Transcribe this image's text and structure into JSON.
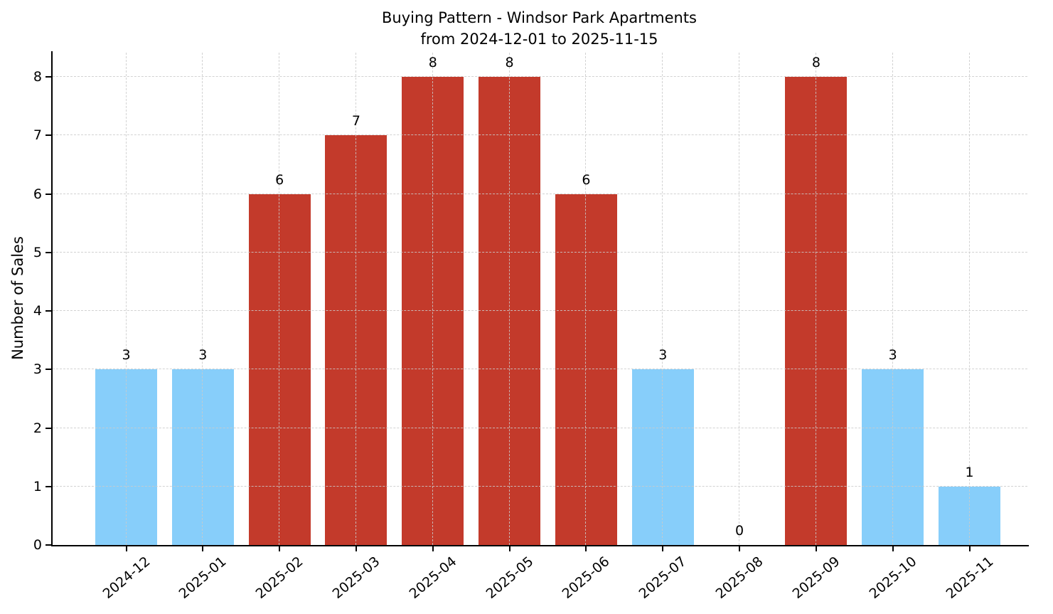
{
  "figure": {
    "title_line1": "Buying Pattern - Windsor Park Apartments",
    "title_line2": "from 2024-12-01 to 2025-11-15"
  },
  "chart_data": {
    "type": "bar",
    "title": "Buying Pattern - Windsor Park Apartments\nfrom 2024-12-01 to 2025-11-15",
    "xlabel": "",
    "ylabel": "Number of Sales",
    "categories": [
      "2024-12",
      "2025-01",
      "2025-02",
      "2025-03",
      "2025-04",
      "2025-05",
      "2025-06",
      "2025-07",
      "2025-08",
      "2025-09",
      "2025-10",
      "2025-11"
    ],
    "values": [
      3,
      3,
      6,
      7,
      8,
      8,
      6,
      3,
      0,
      8,
      3,
      1
    ],
    "bar_colors": [
      "#87CEFA",
      "#87CEFA",
      "#C33A2B",
      "#C33A2B",
      "#C33A2B",
      "#C33A2B",
      "#C33A2B",
      "#87CEFA",
      "#87CEFA",
      "#C33A2B",
      "#87CEFA",
      "#87CEFA"
    ],
    "yticks": [
      0,
      1,
      2,
      3,
      4,
      5,
      6,
      7,
      8
    ],
    "ylim": [
      0,
      8.44
    ],
    "grid": true,
    "grid_linestyle": "dashed",
    "legend_position": "none",
    "x_tick_rotation_deg": 45,
    "value_labels_shown": true
  },
  "colors": {
    "bar_blue": "#87CEFA",
    "bar_red": "#C33A2B",
    "grid": "#CBCBCB",
    "axis": "#000000",
    "text": "#000000",
    "background": "#FFFFFF"
  }
}
